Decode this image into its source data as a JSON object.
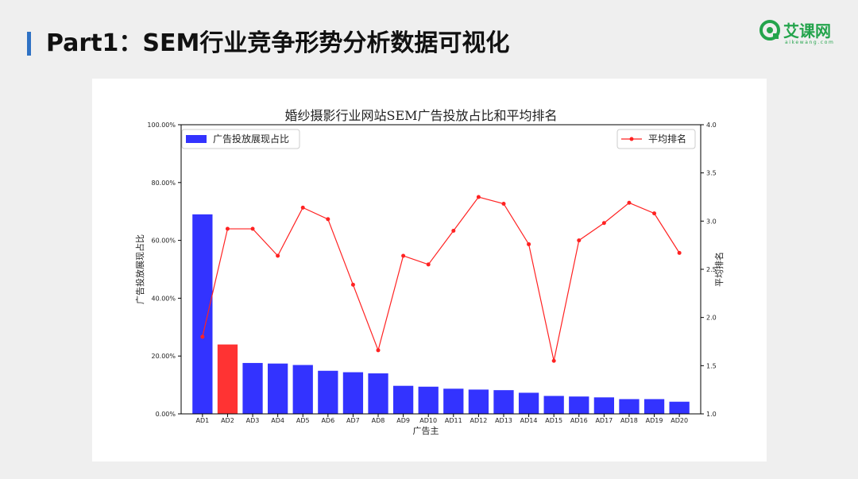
{
  "page": {
    "title": "Part1：SEM行业竞争形势分析数据可视化",
    "accent_color": "#2f72c4"
  },
  "logo": {
    "icon": "aikewang-logo-icon",
    "name": "艾课网",
    "subtitle": "aikewang.com",
    "color": "#24a44c"
  },
  "chart_data": {
    "type": "bar",
    "title": "婚纱摄影行业网站SEM广告投放占比和平均排名",
    "xlabel": "广告主",
    "ylabel": "广告投放展现占比",
    "y2label": "平均排名",
    "categories": [
      "AD1",
      "AD2",
      "AD3",
      "AD4",
      "AD5",
      "AD6",
      "AD7",
      "AD8",
      "AD9",
      "AD10",
      "AD11",
      "AD12",
      "AD13",
      "AD14",
      "AD15",
      "AD16",
      "AD17",
      "AD18",
      "AD19",
      "AD20"
    ],
    "ylim": [
      0,
      100
    ],
    "y_ticks": [
      "0.00%",
      "20.00%",
      "40.00%",
      "60.00%",
      "80.00%",
      "100.00%"
    ],
    "y2lim": [
      1.0,
      4.0
    ],
    "y2_ticks": [
      "1.0",
      "1.5",
      "2.0",
      "2.5",
      "3.0",
      "3.5",
      "4.0"
    ],
    "grid": false,
    "series": [
      {
        "name": "广告投放展现占比",
        "type": "bar",
        "axis": "left",
        "color": "#3333ff",
        "highlight_index": 1,
        "highlight_color": "#ff3333",
        "values": [
          69.0,
          24.0,
          17.6,
          17.4,
          16.9,
          14.9,
          14.4,
          14.0,
          9.7,
          9.4,
          8.7,
          8.4,
          8.2,
          7.3,
          6.2,
          6.0,
          5.7,
          5.1,
          5.1,
          4.2
        ]
      },
      {
        "name": "平均排名",
        "type": "line",
        "axis": "right",
        "color": "#ff2222",
        "values": [
          1.8,
          2.92,
          2.92,
          2.64,
          3.14,
          3.02,
          2.34,
          1.66,
          2.64,
          2.55,
          2.9,
          3.25,
          3.18,
          2.76,
          1.55,
          2.8,
          2.98,
          3.19,
          3.08,
          2.67
        ]
      }
    ],
    "legend_left_position": "upper-left",
    "legend_right_position": "upper-right"
  }
}
